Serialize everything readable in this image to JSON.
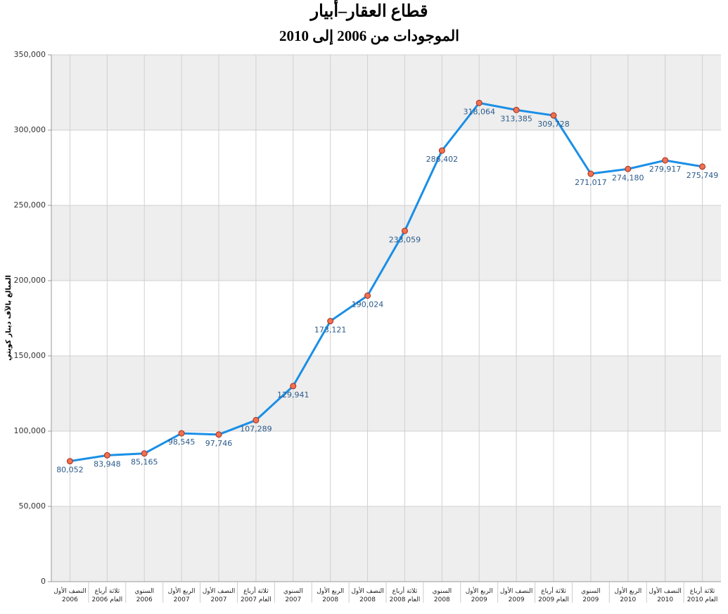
{
  "chart_data": {
    "type": "line",
    "title": "قطاع العقار–أبيار",
    "subtitle": "الموجودات من 2006 إلى 2010",
    "y_label": "المبالغ بالآف دينار كويتي",
    "categories": [
      "النصف الأول\n2006",
      "ثلاثة أرباع\nالعام 2006",
      "السنوي\n2006",
      "الربع الأول\n2007",
      "النصف الأول\n2007",
      "ثلاثة أرباع\nالعام 2007",
      "السنوي\n2007",
      "الربع الأول\n2008",
      "النصف الأول\n2008",
      "ثلاثة أرباع\nالعام 2008",
      "السنوي\n2008",
      "الربع الأول\n2009",
      "النصف الأول\n2009",
      "ثلاثة أرباع\nالعام 2009",
      "السنوي\n2009",
      "الربع الأول\n2010",
      "النصف الأول\n2010",
      "ثلاثة أرباع\nالعام 2010"
    ],
    "values": [
      80052,
      83948,
      85165,
      98545,
      97746,
      107289,
      129941,
      173121,
      190024,
      233059,
      286402,
      318064,
      313385,
      309728,
      271017,
      274180,
      279917,
      275749
    ],
    "value_labels": [
      "80,052",
      "83,948",
      "85,165",
      "98,545",
      "97,746",
      "107,289",
      "129,941",
      "173,121",
      "190,024",
      "233,059",
      "286,402",
      "318,064",
      "313,385",
      "309,728",
      "271,017",
      "274,180",
      "279,917",
      "275,749"
    ],
    "color": "#1a8fe6",
    "marker_color": "#f07050",
    "ylim": [
      0,
      350000
    ],
    "yticks": [
      0,
      {
        "value": 50000,
        "label": "50,000"
      },
      {
        "value": 100000,
        "label": "100,000"
      },
      {
        "value": 150000,
        "label": "150,000"
      },
      {
        "value": 200000,
        "label": "200,000"
      },
      {
        "value": 250000,
        "label": "250,000"
      },
      {
        "value": 300000,
        "label": "300,000"
      },
      {
        "value": 350000,
        "label": "350,000"
      }
    ],
    "grid": true
  }
}
